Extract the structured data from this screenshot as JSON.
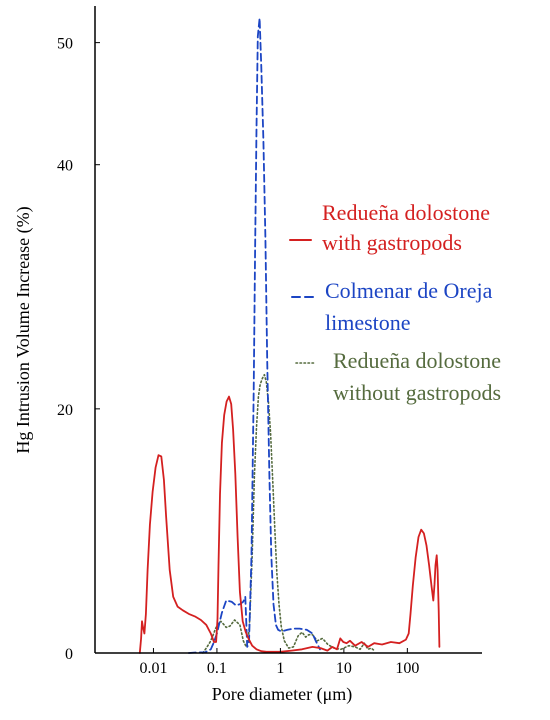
{
  "chart_data": {
    "type": "line",
    "xlabel": "Pore diameter (μm)",
    "ylabel": "Hg Intrusion Volume Increase (%)",
    "xscale": "log",
    "xlim": [
      0.0012,
      1500
    ],
    "ylim": [
      0,
      53
    ],
    "xticks": [
      {
        "value": 0.01,
        "label": "0.01"
      },
      {
        "value": 0.1,
        "label": "0.1"
      },
      {
        "value": 1,
        "label": "1"
      },
      {
        "value": 10,
        "label": "10"
      },
      {
        "value": 100,
        "label": "100"
      }
    ],
    "yticks": [
      {
        "value": 0,
        "label": "0"
      },
      {
        "value": 20,
        "label": "20"
      },
      {
        "value": 40,
        "label": "40"
      },
      {
        "value": 50,
        "label": "50"
      }
    ],
    "grid": false,
    "legend_position": "right",
    "series": [
      {
        "name": "Redueña dolostone with gastropods",
        "legend_lines": [
          "Redueña dolostone",
          "with gastropods"
        ],
        "color": "#d42020",
        "dash": "solid",
        "x": [
          0.0061,
          0.0064,
          0.0066,
          0.0068,
          0.0072,
          0.0076,
          0.0081,
          0.0088,
          0.0097,
          0.0108,
          0.012,
          0.0133,
          0.0146,
          0.0158,
          0.018,
          0.0205,
          0.024,
          0.029,
          0.036,
          0.045,
          0.056,
          0.068,
          0.08,
          0.09,
          0.097,
          0.102,
          0.106,
          0.112,
          0.12,
          0.13,
          0.142,
          0.155,
          0.168,
          0.18,
          0.195,
          0.212,
          0.23,
          0.255,
          0.285,
          0.32,
          0.36,
          0.42,
          0.5,
          0.6,
          0.75,
          1.0,
          1.5,
          2.2,
          3.2,
          4.3,
          5.5,
          6.6,
          7.8,
          8.8,
          9.8,
          11,
          12.5,
          15,
          19,
          24,
          30,
          40,
          55,
          75,
          95,
          105,
          112,
          122,
          135,
          150,
          165,
          182,
          200,
          220,
          240,
          256,
          268,
          278,
          290,
          300,
          312,
          320
        ],
        "y": [
          0,
          1.2,
          2.6,
          2.2,
          1.6,
          3.2,
          6.8,
          10.5,
          13.2,
          15.2,
          16.2,
          16.1,
          14.2,
          11.2,
          6.8,
          4.6,
          3.8,
          3.5,
          3.2,
          3.0,
          2.7,
          2.3,
          1.6,
          0.9,
          0.9,
          2.8,
          7.2,
          13.0,
          17.2,
          19.5,
          20.6,
          21.0,
          20.4,
          18.3,
          14.7,
          9.5,
          5.0,
          2.6,
          1.7,
          1.1,
          0.6,
          0.3,
          0.15,
          0.1,
          0.1,
          0.1,
          0.2,
          0.3,
          0.5,
          0.4,
          0.2,
          0.5,
          0.3,
          1.2,
          0.9,
          0.8,
          1.0,
          0.6,
          0.9,
          0.5,
          0.8,
          0.7,
          0.9,
          0.8,
          1.1,
          1.6,
          3.2,
          5.5,
          7.8,
          9.5,
          10.1,
          9.8,
          8.8,
          7.2,
          5.5,
          4.3,
          5.6,
          7.2,
          8.0,
          6.8,
          3.5,
          0.5
        ]
      },
      {
        "name": "Colmenar de Oreja limestone",
        "legend_lines": [
          "Colmenar de Oreja",
          "limestone"
        ],
        "color": "#1c45c4",
        "dash": "dashed",
        "x": [
          0.036,
          0.05,
          0.065,
          0.08,
          0.09,
          0.1,
          0.12,
          0.14,
          0.17,
          0.2,
          0.23,
          0.26,
          0.28,
          0.3,
          0.32,
          0.35,
          0.38,
          0.4,
          0.42,
          0.44,
          0.47,
          0.5,
          0.54,
          0.58,
          0.62,
          0.67,
          0.72,
          0.78,
          0.85,
          0.92,
          1.0,
          1.1,
          1.3,
          1.6,
          2.0,
          2.6,
          3.2,
          3.6,
          4.2
        ],
        "y": [
          0,
          0.05,
          0.05,
          0.3,
          0.9,
          1.6,
          3.3,
          4.3,
          4.2,
          3.9,
          4.0,
          4.2,
          4.6,
          0.5,
          0.8,
          8.0,
          21.5,
          33.0,
          43.0,
          50.5,
          52.0,
          48.0,
          42.0,
          34.0,
          24.0,
          14.5,
          8.0,
          4.0,
          2.3,
          1.9,
          1.8,
          1.8,
          1.9,
          2.0,
          2.0,
          1.9,
          1.6,
          1.0,
          0.3
        ]
      },
      {
        "name": "Redueña dolostone without gastropods",
        "legend_lines": [
          "Redueña dolostone",
          "without gastropods"
        ],
        "color": "#556b3e",
        "dash": "dotted",
        "x": [
          0.06,
          0.068,
          0.078,
          0.086,
          0.095,
          0.105,
          0.115,
          0.125,
          0.14,
          0.16,
          0.19,
          0.23,
          0.26,
          0.29,
          0.31,
          0.33,
          0.36,
          0.39,
          0.42,
          0.45,
          0.48,
          0.52,
          0.56,
          0.6,
          0.65,
          0.7,
          0.76,
          0.82,
          0.88,
          0.95,
          1.03,
          1.15,
          1.35,
          1.6,
          1.9,
          2.2,
          2.5,
          2.8,
          3.2,
          3.8,
          4.6,
          5.6,
          7,
          9,
          12,
          15,
          18,
          21,
          24,
          27,
          30
        ],
        "y": [
          0,
          0.4,
          0.9,
          1.4,
          2.0,
          2.4,
          2.6,
          2.4,
          2.1,
          2.2,
          2.7,
          2.3,
          1.0,
          0.5,
          0.9,
          2.8,
          8.0,
          14.5,
          18.5,
          21.0,
          22.0,
          22.5,
          22.8,
          22.2,
          20.5,
          18.0,
          14.0,
          10.0,
          6.5,
          4.0,
          2.2,
          1.0,
          0.4,
          0.5,
          1.4,
          1.7,
          1.3,
          1.5,
          1.5,
          1.0,
          1.2,
          0.7,
          0.4,
          0.3,
          0.6,
          0.5,
          0.3,
          0.8,
          0.3,
          0.4,
          0.2
        ]
      }
    ]
  }
}
